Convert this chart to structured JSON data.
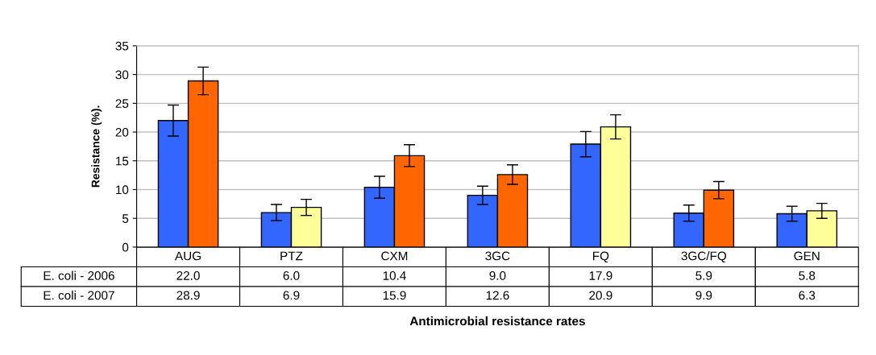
{
  "chart_data": {
    "type": "bar",
    "ylabel": "Resistance (%).",
    "xlabel": "Antimicrobial resistance rates",
    "categories": [
      "AUG",
      "PTZ",
      "CXM",
      "3GC",
      "FQ",
      "3GC/FQ",
      "GEN"
    ],
    "series": [
      {
        "name": "E. coli - 2006",
        "color": "#3366ff",
        "values": [
          22.0,
          6.0,
          10.4,
          9.0,
          17.9,
          5.9,
          5.8
        ],
        "value_labels": [
          "22.0",
          "6.0",
          "10.4",
          "9.0",
          "17.9",
          "5.9",
          "5.8"
        ],
        "errors": [
          2.7,
          1.4,
          1.9,
          1.6,
          2.2,
          1.4,
          1.3
        ]
      },
      {
        "name": "E. coli - 2007",
        "colors": [
          "#ff6600",
          "#ffff99",
          "#ff6600",
          "#ff6600",
          "#ffff99",
          "#ff6600",
          "#ffff99"
        ],
        "values": [
          28.9,
          6.9,
          15.9,
          12.6,
          20.9,
          9.9,
          6.3
        ],
        "value_labels": [
          "28.9",
          "6.9",
          "15.9",
          "12.6",
          "20.9",
          "9.9",
          "6.3"
        ],
        "errors": [
          2.4,
          1.4,
          1.9,
          1.7,
          2.1,
          1.5,
          1.3
        ]
      }
    ],
    "ylim": [
      0,
      35
    ],
    "yticks": [
      0,
      5,
      10,
      15,
      20,
      25,
      30,
      35
    ],
    "grid": "y"
  }
}
